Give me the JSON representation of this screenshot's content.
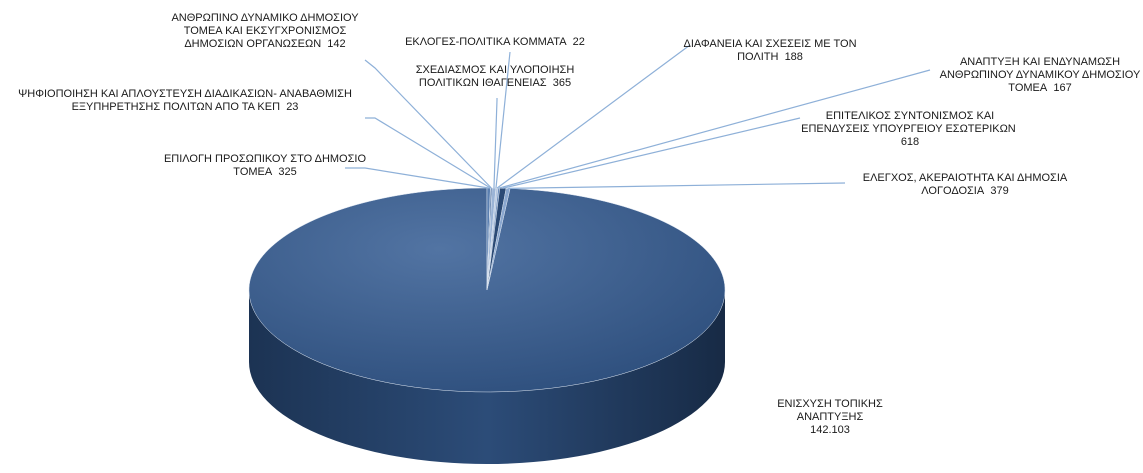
{
  "chart_data": {
    "type": "pie",
    "categories": [
      "ΕΝΙΣΧΥΣΗ ΤΟΠΙΚΗΣ ΑΝΑΠΤΥΞΗΣ",
      "ΕΠΙΛΟΓΗ ΠΡΟΣΩΠΙΚΟΥ ΣΤΟ ΔΗΜΟΣΙΟ ΤΟΜΕΑ",
      "ΨΗΦΙΟΠΟΙΗΣΗ ΚΑΙ ΑΠΛΟΥΣΤΕΥΣΗ ΔΙΑΔΙΚΑΣΙΩΝ- ΑΝΑΒΑΘΜΙΣΗ ΕΞΥΠΗΡΕΤΗΣΗΣ ΠΟΛΙΤΩΝ ΑΠΟ ΤΑ ΚΕΠ",
      "ΑΝΘΡΩΠΙΝΟ ΔΥΝΑΜΙΚΟ ΔΗΜΟΣΙΟΥ ΤΟΜΕΑ ΚΑΙ ΕΚΣΥΓΧΡΟΝΙΣΜΟΣ ΔΗΜΟΣΙΩΝ ΟΡΓΑΝΩΣΕΩΝ",
      "ΣΧΕΔΙΑΣΜΟΣ ΚΑΙ ΥΛΟΠΟΙΗΣΗ ΠΟΛΙΤΙΚΩΝ ΙΘΑΓΕΝΕΙΑΣ",
      "ΕΚΛΟΓΕΣ-ΠΟΛΙΤΙΚΑ ΚΟΜΜΑΤΑ",
      "ΔΙΑΦΑΝΕΙΑ ΚΑΙ ΣΧΕΣΕΙΣ ΜΕ ΤΟΝ ΠΟΛΙΤΗ",
      "ΑΝΑΠΤΥΞΗ ΚΑΙ ΕΝΔΥΝΑΜΩΣΗ ΑΝΘΡΩΠΙΝΟΥ ΔΥΝΑΜΙΚΟΥ ΔΗΜΟΣΙΟΥ ΤΟΜΕΑ",
      "ΕΠΙΤΕΛΙΚΟΣ ΣΥΝΤΟΝΙΣΜΟΣ ΚΑΙ ΕΠΕΝΔΥΣΕΙΣ ΥΠΟΥΡΓΕΙΟΥ ΕΣΩΤΕΡΙΚΩΝ",
      "ΕΛΕΓΧΟΣ, ΑΚΕΡΑΙΟΤΗΤΑ ΚΑΙ ΔΗΜΟΣΙΑ ΛΟΓΟΔΟΣΙΑ"
    ],
    "values": [
      142103,
      325,
      23,
      142,
      365,
      22,
      188,
      167,
      618,
      379
    ],
    "value_labels": [
      "142.103",
      "325",
      "23",
      "142",
      "365",
      "22",
      "188",
      "167",
      "618",
      "379"
    ],
    "colors": [
      "#36598a",
      "#5a7fb0",
      "#7d9cc6",
      "#4a6e9f",
      "#9bb4d6",
      "#3e6496",
      "#b5c8e2",
      "#6c8dbb",
      "#2b4a75",
      "#8aa7cf"
    ]
  }
}
